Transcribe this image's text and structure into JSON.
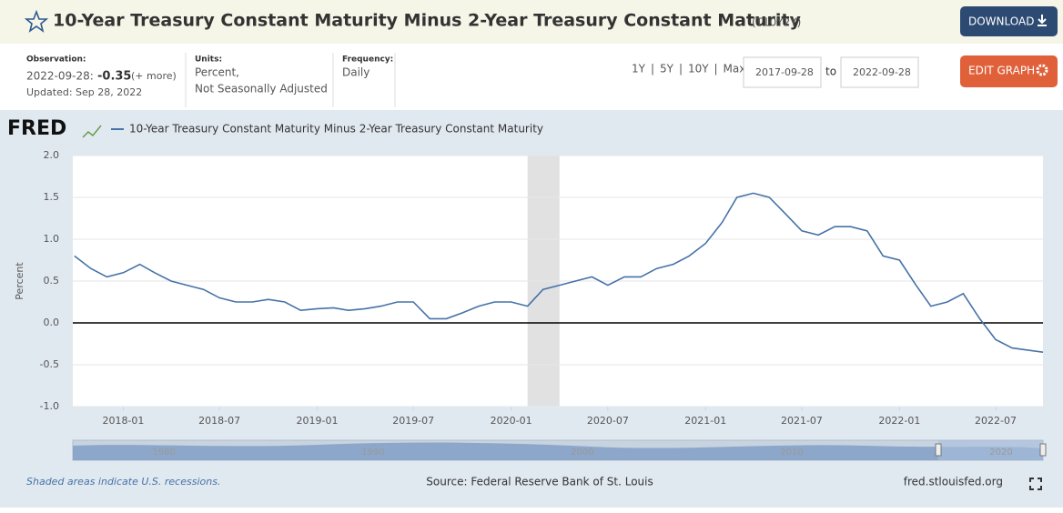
{
  "header": {
    "title": "10-Year Treasury Constant Maturity Minus 2-Year Treasury Constant Maturity",
    "series_id": "(T10Y2Y)",
    "download": "DOWNLOAD"
  },
  "info": {
    "observation_label": "Observation:",
    "observation_date": "2022-09-28:",
    "observation_value": "-0.35",
    "more": "(+ more)",
    "updated": "Updated: Sep 28, 2022",
    "units_label": "Units:",
    "units": [
      "Percent,",
      "Not Seasonally Adjusted"
    ],
    "frequency_label": "Frequency:",
    "frequency": "Daily"
  },
  "controls": {
    "ranges": [
      "1Y",
      "5Y",
      "10Y",
      "Max"
    ],
    "separator": "|",
    "start": "2017-09-28",
    "to": "to",
    "end": "2022-09-28",
    "edit": "EDIT GRAPH"
  },
  "logo": "FRED",
  "chart_data": {
    "type": "line",
    "ylabel": "Percent",
    "xlim": [
      "2017-09-28",
      "2022-09-28"
    ],
    "xticks": [
      "2018-01",
      "2018-07",
      "2019-01",
      "2019-07",
      "2020-01",
      "2020-07",
      "2021-01",
      "2021-07",
      "2022-01",
      "2022-07"
    ],
    "ylim": [
      -1.0,
      2.0
    ],
    "yticks": [
      {
        "value": 2.0,
        "label": "2.0"
      },
      {
        "value": 1.5,
        "label": "1.5"
      },
      {
        "value": 1.0,
        "label": "1.0"
      },
      {
        "value": 0.5,
        "label": "0.5"
      },
      {
        "value": 0.0,
        "label": "0.0"
      },
      {
        "value": -0.5,
        "label": "-0.5"
      },
      {
        "value": -1.0,
        "label": "-1.0"
      }
    ],
    "grid": true,
    "recessions": [
      {
        "start": "2020-02",
        "end": "2020-04"
      }
    ],
    "x": [
      "2017-10",
      "2017-11",
      "2017-12",
      "2018-01",
      "2018-02",
      "2018-03",
      "2018-04",
      "2018-05",
      "2018-06",
      "2018-07",
      "2018-08",
      "2018-09",
      "2018-10",
      "2018-11",
      "2018-12",
      "2019-01",
      "2019-02",
      "2019-03",
      "2019-04",
      "2019-05",
      "2019-06",
      "2019-07",
      "2019-08",
      "2019-09",
      "2019-10",
      "2019-11",
      "2019-12",
      "2020-01",
      "2020-02",
      "2020-03",
      "2020-04",
      "2020-05",
      "2020-06",
      "2020-07",
      "2020-08",
      "2020-09",
      "2020-10",
      "2020-11",
      "2020-12",
      "2021-01",
      "2021-02",
      "2021-03",
      "2021-04",
      "2021-05",
      "2021-06",
      "2021-07",
      "2021-08",
      "2021-09",
      "2021-10",
      "2021-11",
      "2021-12",
      "2022-01",
      "2022-02",
      "2022-03",
      "2022-04",
      "2022-05",
      "2022-06",
      "2022-07",
      "2022-08",
      "2022-09-28"
    ],
    "series": [
      {
        "name": "10-Year Treasury Constant Maturity Minus 2-Year Treasury Constant Maturity",
        "color": "#4572a7",
        "values": [
          0.8,
          0.65,
          0.55,
          0.6,
          0.7,
          0.6,
          0.5,
          0.45,
          0.4,
          0.3,
          0.25,
          0.25,
          0.28,
          0.25,
          0.15,
          0.17,
          0.18,
          0.15,
          0.17,
          0.2,
          0.25,
          0.25,
          0.05,
          0.05,
          0.12,
          0.2,
          0.25,
          0.25,
          0.2,
          0.4,
          0.45,
          0.5,
          0.55,
          0.45,
          0.55,
          0.55,
          0.65,
          0.7,
          0.8,
          0.95,
          1.2,
          1.5,
          1.55,
          1.5,
          1.3,
          1.1,
          1.05,
          1.15,
          1.15,
          1.1,
          0.8,
          0.75,
          0.45,
          0.2,
          0.25,
          0.35,
          0.05,
          -0.2,
          -0.3,
          -0.35
        ]
      }
    ],
    "navigator_labels": [
      "1980",
      "1990",
      "2000",
      "2010",
      "2020"
    ]
  },
  "footer": {
    "note": "Shaded areas indicate U.S. recessions.",
    "source": "Source: Federal Reserve Bank of St. Louis",
    "site": "fred.stlouisfed.org"
  }
}
